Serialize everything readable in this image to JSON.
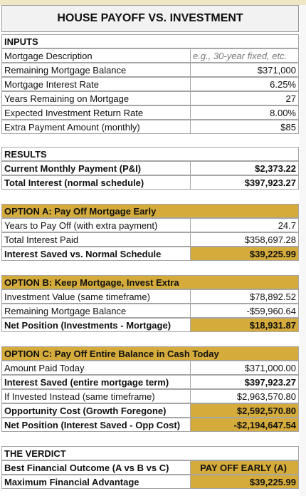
{
  "title": "HOUSE PAYOFF VS. INVESTMENT",
  "sections": [
    {
      "heading": "INPUTS",
      "rows": [
        {
          "label": "Mortgage Description",
          "value": "e.g., 30-year fixed, etc."
        },
        {
          "label": "Remaining Mortgage Balance",
          "value": "$371,000"
        },
        {
          "label": "Mortgage Interest Rate",
          "value": "6.25%"
        },
        {
          "label": "Years Remaining on Mortgage",
          "value": "27"
        },
        {
          "label": "Expected Investment Return Rate",
          "value": "8.00%"
        },
        {
          "label": "Extra Payment Amount (monthly)",
          "value": "$85"
        }
      ]
    },
    {
      "heading": "RESULTS",
      "rows": [
        {
          "label": "Current Monthly Payment (P&I)",
          "value": "$2,373.22"
        },
        {
          "label": "Total Interest (normal schedule)",
          "value": "$397,923.27"
        }
      ]
    },
    {
      "heading": "OPTION A: Pay Off Mortgage Early",
      "rows": [
        {
          "label": "Years to Pay Off (with extra payment)",
          "value": "24.7"
        },
        {
          "label": "Total Interest Paid",
          "value": "$358,697.28"
        },
        {
          "label": "Interest Saved vs. Normal Schedule",
          "value": "$39,225.99"
        }
      ]
    },
    {
      "heading": "OPTION B: Keep Mortgage, Invest Extra",
      "rows": [
        {
          "label": "Investment Value (same timeframe)",
          "value": "$78,892.52"
        },
        {
          "label": "Remaining Mortgage Balance",
          "value": "-$59,960.64"
        },
        {
          "label": "Net Position (Investments - Mortgage)",
          "value": "$18,931.87"
        }
      ]
    },
    {
      "heading": "OPTION C: Pay Off Entire Balance in Cash Today",
      "rows": [
        {
          "label": "Amount Paid Today",
          "value": "$371,000.00"
        },
        {
          "label": "Interest Saved (entire mortgage term)",
          "value": "$397,923.27"
        },
        {
          "label": "If Invested Instead (same timeframe)",
          "value": "$2,963,570.80"
        },
        {
          "label": "Opportunity Cost (Growth Foregone)",
          "value": "$2,592,570.80"
        },
        {
          "label": "Net Position (Interest Saved - Opp Cost)",
          "value": "-$2,194,647.54"
        }
      ]
    },
    {
      "heading": "THE VERDICT",
      "rows": [
        {
          "label": "Best Financial Outcome (A vs B vs C)",
          "value": "PAY OFF EARLY (A)"
        },
        {
          "label": "Maximum Financial Advantage",
          "value": "$39,225.99"
        }
      ]
    }
  ]
}
